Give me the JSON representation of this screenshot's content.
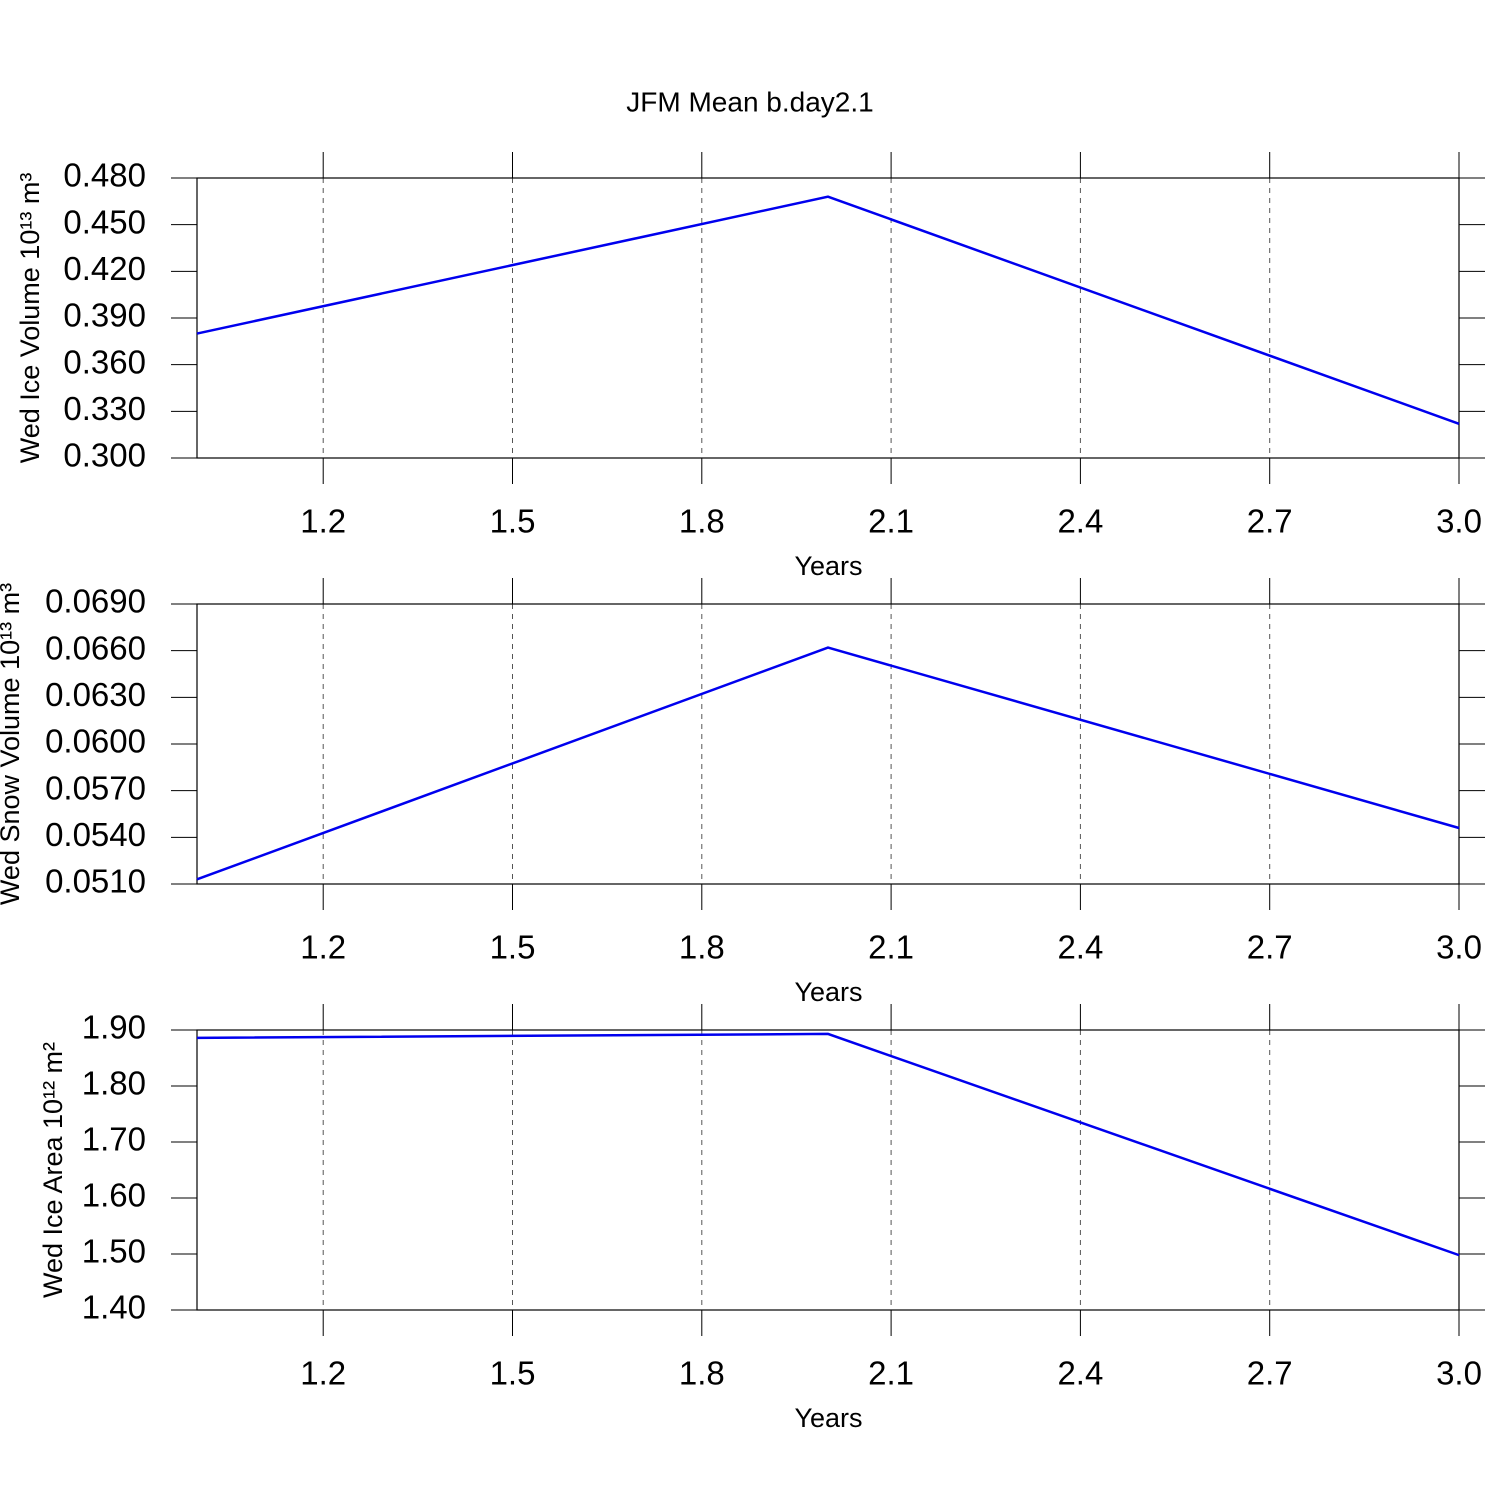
{
  "chart_data": [
    {
      "type": "line",
      "title": "JFM Mean b.day2.1",
      "xlabel": "Years",
      "ylabel": "Wed Ice Volume 10¹³ m³",
      "x": [
        1,
        2,
        3
      ],
      "series": [
        {
          "color": "#0000ee",
          "values": [
            0.38,
            0.468,
            0.322
          ]
        }
      ],
      "xlim": [
        1,
        3
      ],
      "xticks": [
        1.2,
        1.5,
        1.8,
        2.1,
        2.4,
        2.7,
        {
          "value": 3,
          "label": "3.0"
        }
      ],
      "ylim": [
        0.3,
        0.48
      ],
      "yticks": [
        {
          "value": 0.3,
          "label": "0.300"
        },
        {
          "value": 0.33,
          "label": "0.330"
        },
        {
          "value": 0.36,
          "label": "0.360"
        },
        {
          "value": 0.39,
          "label": "0.390"
        },
        {
          "value": 0.42,
          "label": "0.420"
        },
        {
          "value": 0.45,
          "label": "0.450"
        },
        {
          "value": 0.48,
          "label": "0.480"
        }
      ],
      "xgrid": true
    },
    {
      "type": "line",
      "xlabel": "Years",
      "ylabel": "Wed Snow Volume 10¹³ m³",
      "x": [
        1,
        2,
        3
      ],
      "series": [
        {
          "color": "#0000ee",
          "values": [
            0.0513,
            0.0662,
            0.0546
          ]
        }
      ],
      "xlim": [
        1,
        3
      ],
      "xticks": [
        1.2,
        1.5,
        1.8,
        2.1,
        2.4,
        2.7,
        {
          "value": 3,
          "label": "3.0"
        }
      ],
      "ylim": [
        0.051,
        0.069
      ],
      "yticks": [
        {
          "value": 0.051,
          "label": "0.0510"
        },
        {
          "value": 0.054,
          "label": "0.0540"
        },
        {
          "value": 0.057,
          "label": "0.0570"
        },
        {
          "value": 0.06,
          "label": "0.0600"
        },
        {
          "value": 0.063,
          "label": "0.0630"
        },
        {
          "value": 0.066,
          "label": "0.0660"
        },
        {
          "value": 0.069,
          "label": "0.0690"
        }
      ],
      "xgrid": true
    },
    {
      "type": "line",
      "xlabel": "Years",
      "ylabel": "Wed Ice Area 10¹² m²",
      "x": [
        1,
        2,
        3
      ],
      "series": [
        {
          "color": "#0000ee",
          "values": [
            1.886,
            1.893,
            1.498
          ]
        }
      ],
      "xlim": [
        1,
        3
      ],
      "xticks": [
        1.2,
        1.5,
        1.8,
        2.1,
        2.4,
        2.7,
        {
          "value": 3,
          "label": "3.0"
        }
      ],
      "ylim": [
        1.4,
        1.9
      ],
      "yticks": [
        {
          "value": 1.4,
          "label": "1.40"
        },
        {
          "value": 1.5,
          "label": "1.50"
        },
        {
          "value": 1.6,
          "label": "1.60"
        },
        {
          "value": 1.7,
          "label": "1.70"
        },
        {
          "value": 1.8,
          "label": "1.80"
        },
        {
          "value": 1.9,
          "label": "1.90"
        }
      ],
      "xgrid": true
    }
  ]
}
